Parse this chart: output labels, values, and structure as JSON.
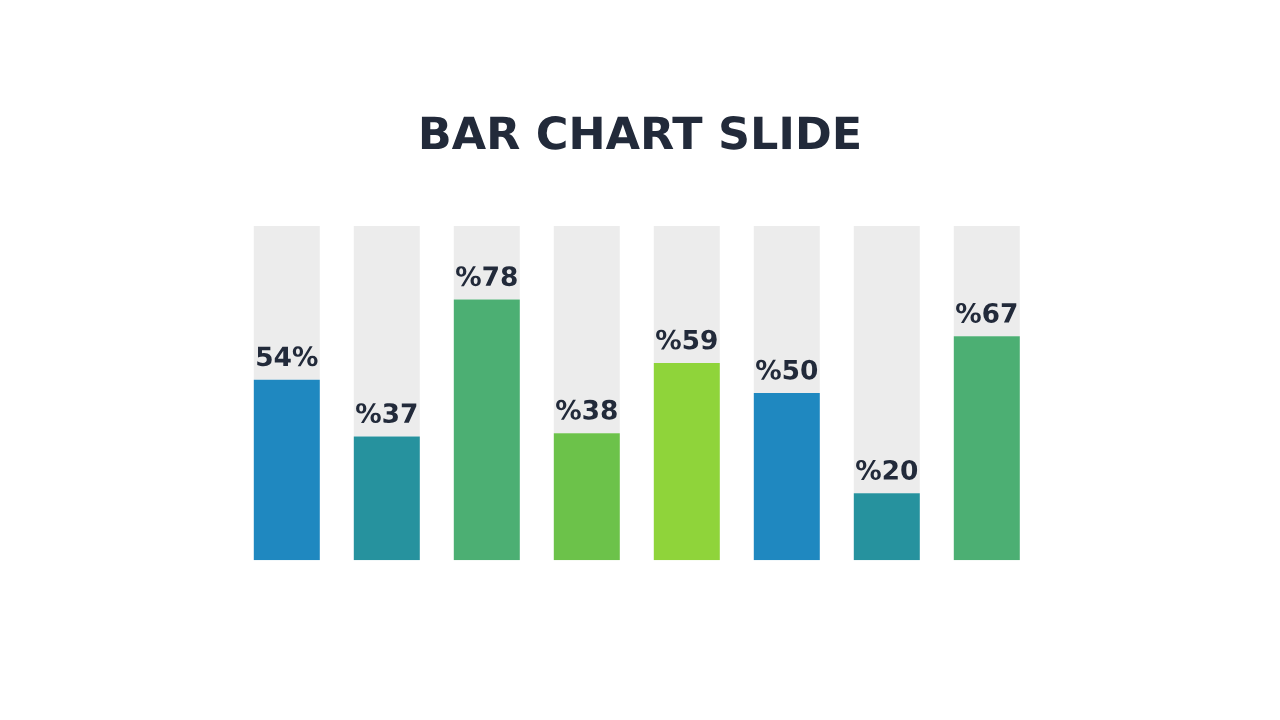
{
  "chart_data": {
    "type": "bar",
    "title": "BAR CHART SLIDE",
    "categories": [
      null,
      null,
      null,
      null,
      null,
      null,
      null,
      null
    ],
    "stacked": true,
    "ylim": [
      0,
      100
    ],
    "tick_labels": false,
    "grid": false,
    "legend": false,
    "series": [
      {
        "colors": [
          "#1f88c0",
          "#26929e",
          "#4caf73",
          "#6cc24a",
          "#8fd43a",
          "#1f88c0",
          "#26929e",
          "#4caf73"
        ],
        "values": [
          54,
          37,
          78,
          38,
          59,
          50,
          20,
          67
        ],
        "value_labels": [
          "54%",
          "%37",
          "%78",
          "%38",
          "%59",
          "%50",
          "%20",
          "%67"
        ]
      },
      {
        "color": "#ececec",
        "values": [
          46,
          63,
          22,
          62,
          41,
          50,
          80,
          33
        ]
      }
    ]
  }
}
